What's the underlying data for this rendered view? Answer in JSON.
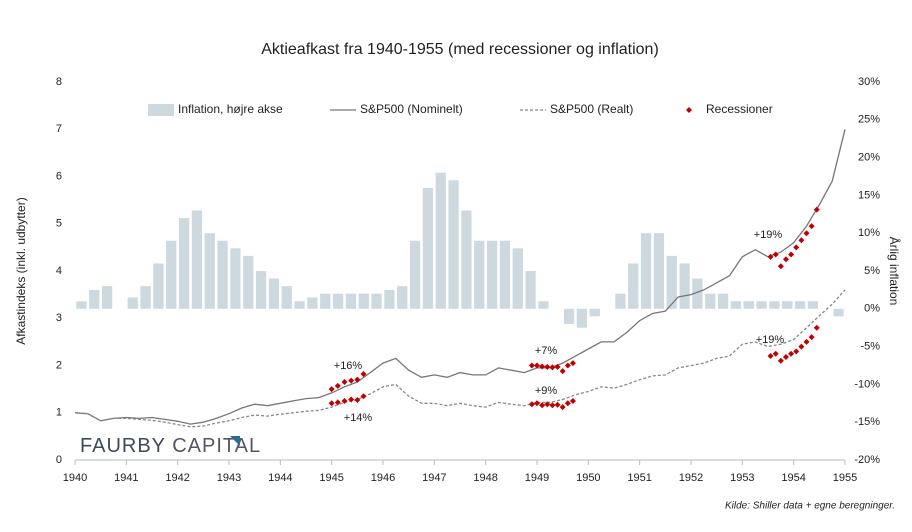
{
  "chart_data": {
    "type": "combo",
    "title": "Aktieafkast fra 1940-1955 (med recessioner og inflation)",
    "y_label": "Afkastindeks (inkl. udbytter)",
    "y2_label": "Årlig inflation",
    "source": "Kilde: Shiller data + egne beregninger.",
    "logo": [
      "FAURBY",
      "CAPITAL"
    ],
    "xlim": [
      1940,
      1955
    ],
    "xticks": [
      1940,
      1941,
      1942,
      1943,
      1944,
      1945,
      1946,
      1947,
      1948,
      1949,
      1950,
      1951,
      1952,
      1953,
      1954,
      1955
    ],
    "ylim": [
      0,
      8
    ],
    "yticks": [
      0,
      1,
      2,
      3,
      4,
      5,
      6,
      7,
      8
    ],
    "y2lim": [
      -20,
      30
    ],
    "y2ticks": [
      {
        "value": -20,
        "label": "-20%"
      },
      {
        "value": -15,
        "label": "-15%"
      },
      {
        "value": -10,
        "label": "-10%"
      },
      {
        "value": -5,
        "label": "-5%"
      },
      {
        "value": 0,
        "label": "0%"
      },
      {
        "value": 5,
        "label": "5%"
      },
      {
        "value": 10,
        "label": "10%"
      },
      {
        "value": 15,
        "label": "15%"
      },
      {
        "value": 20,
        "label": "20%"
      },
      {
        "value": 25,
        "label": "25%"
      },
      {
        "value": 30,
        "label": "30%"
      }
    ],
    "series": [
      {
        "name": "Inflation, højre akse",
        "kind": "bar",
        "axis": "y2",
        "color": "#cdd9de",
        "x": [
          1940,
          1940.25,
          1940.5,
          1940.75,
          1941,
          1941.25,
          1941.5,
          1941.75,
          1942,
          1942.25,
          1942.5,
          1942.75,
          1943,
          1943.25,
          1943.5,
          1943.75,
          1944,
          1944.25,
          1944.5,
          1944.75,
          1945,
          1945.25,
          1945.5,
          1945.75,
          1946,
          1946.25,
          1946.5,
          1946.75,
          1947,
          1947.25,
          1947.5,
          1947.75,
          1948,
          1948.25,
          1948.5,
          1948.75,
          1949,
          1949.25,
          1949.5,
          1949.75,
          1950,
          1950.25,
          1950.5,
          1950.75,
          1951,
          1951.25,
          1951.5,
          1951.75,
          1952,
          1952.25,
          1952.5,
          1952.75,
          1953,
          1953.25,
          1953.5,
          1953.75,
          1954,
          1954.25,
          1954.5,
          1954.75
        ],
        "values": [
          1,
          2.5,
          3,
          0,
          1.5,
          3,
          6,
          9,
          12,
          13,
          10,
          9,
          8,
          7,
          5,
          4,
          3,
          1,
          1.5,
          2,
          2,
          2,
          2,
          2,
          2.5,
          3,
          9,
          16,
          18,
          17,
          13,
          9,
          9,
          9,
          8,
          5,
          1,
          0,
          -2,
          -2.5,
          -1,
          0,
          2,
          6,
          10,
          10,
          7,
          6,
          4,
          2,
          2,
          1,
          1,
          1,
          1,
          1,
          1,
          1,
          0,
          -1
        ]
      },
      {
        "name": "S&P500 (Nominelt)",
        "kind": "line",
        "color": "#777777",
        "x": [
          1940,
          1940.25,
          1940.5,
          1940.75,
          1941,
          1941.25,
          1941.5,
          1941.75,
          1942,
          1942.25,
          1942.5,
          1942.75,
          1943,
          1943.25,
          1943.5,
          1943.75,
          1944,
          1944.25,
          1944.5,
          1944.75,
          1945,
          1945.25,
          1945.5,
          1945.75,
          1946,
          1946.25,
          1946.5,
          1946.75,
          1947,
          1947.25,
          1947.5,
          1947.75,
          1948,
          1948.25,
          1948.5,
          1948.75,
          1949,
          1949.25,
          1949.5,
          1949.75,
          1950,
          1950.25,
          1950.5,
          1950.75,
          1951,
          1951.25,
          1951.5,
          1951.75,
          1952,
          1952.25,
          1952.5,
          1952.75,
          1953,
          1953.25,
          1953.5,
          1953.75,
          1954,
          1954.25,
          1954.5,
          1954.75,
          1955
        ],
        "values": [
          1.0,
          0.98,
          0.83,
          0.88,
          0.9,
          0.88,
          0.9,
          0.86,
          0.82,
          0.76,
          0.8,
          0.88,
          0.98,
          1.1,
          1.18,
          1.15,
          1.2,
          1.25,
          1.3,
          1.32,
          1.42,
          1.55,
          1.65,
          1.85,
          2.05,
          2.15,
          1.9,
          1.75,
          1.8,
          1.75,
          1.85,
          1.8,
          1.8,
          1.95,
          1.9,
          1.85,
          1.95,
          1.95,
          2.05,
          2.2,
          2.35,
          2.5,
          2.5,
          2.7,
          2.95,
          3.1,
          3.15,
          3.45,
          3.5,
          3.6,
          3.75,
          3.9,
          4.3,
          4.45,
          4.3,
          4.4,
          4.6,
          4.95,
          5.4,
          5.9,
          7.0
        ]
      },
      {
        "name": "S&P500 (Realt)",
        "kind": "dashed",
        "color": "#888888",
        "x": [
          1940,
          1940.25,
          1940.5,
          1940.75,
          1941,
          1941.25,
          1941.5,
          1941.75,
          1942,
          1942.25,
          1942.5,
          1942.75,
          1943,
          1943.25,
          1943.5,
          1943.75,
          1944,
          1944.25,
          1944.5,
          1944.75,
          1945,
          1945.25,
          1945.5,
          1945.75,
          1946,
          1946.25,
          1946.5,
          1946.75,
          1947,
          1947.25,
          1947.5,
          1947.75,
          1948,
          1948.25,
          1948.5,
          1948.75,
          1949,
          1949.25,
          1949.5,
          1949.75,
          1950,
          1950.25,
          1950.5,
          1950.75,
          1951,
          1951.25,
          1951.5,
          1951.75,
          1952,
          1952.25,
          1952.5,
          1952.75,
          1953,
          1953.25,
          1953.5,
          1953.75,
          1954,
          1954.25,
          1954.5,
          1954.75,
          1955
        ],
        "values": [
          1.0,
          0.98,
          0.83,
          0.88,
          0.88,
          0.86,
          0.84,
          0.8,
          0.75,
          0.7,
          0.72,
          0.78,
          0.83,
          0.9,
          0.95,
          0.93,
          0.97,
          1.0,
          1.03,
          1.05,
          1.12,
          1.22,
          1.28,
          1.4,
          1.55,
          1.6,
          1.35,
          1.2,
          1.2,
          1.15,
          1.2,
          1.15,
          1.12,
          1.22,
          1.18,
          1.15,
          1.22,
          1.22,
          1.28,
          1.38,
          1.45,
          1.55,
          1.52,
          1.6,
          1.7,
          1.78,
          1.8,
          1.95,
          2.0,
          2.05,
          2.15,
          2.2,
          2.45,
          2.5,
          2.4,
          2.45,
          2.55,
          2.8,
          3.05,
          3.3,
          3.6
        ]
      },
      {
        "name": "Recessioner",
        "kind": "scatter",
        "color": "#c00000",
        "x": [
          1945.0,
          1945.12,
          1945.25,
          1945.38,
          1945.5,
          1945.62,
          1945.0,
          1945.12,
          1945.25,
          1945.38,
          1945.5,
          1945.62,
          1948.9,
          1949.0,
          1949.1,
          1949.2,
          1949.3,
          1949.4,
          1949.5,
          1949.6,
          1949.7,
          1948.9,
          1949.0,
          1949.1,
          1949.2,
          1949.3,
          1949.4,
          1949.5,
          1949.6,
          1949.7,
          1953.55,
          1953.65,
          1953.75,
          1953.85,
          1953.95,
          1954.05,
          1954.15,
          1954.25,
          1954.35,
          1954.45,
          1953.55,
          1953.65,
          1953.75,
          1953.85,
          1953.95,
          1954.05,
          1954.15,
          1954.25,
          1954.35,
          1954.45
        ],
        "values": [
          1.5,
          1.57,
          1.65,
          1.68,
          1.7,
          1.82,
          1.2,
          1.22,
          1.25,
          1.28,
          1.27,
          1.35,
          2.0,
          2.0,
          1.98,
          1.97,
          1.96,
          1.97,
          1.88,
          2.0,
          2.05,
          1.18,
          1.2,
          1.16,
          1.18,
          1.16,
          1.17,
          1.12,
          1.2,
          1.25,
          4.3,
          4.35,
          4.1,
          4.25,
          4.35,
          4.5,
          4.65,
          4.8,
          4.95,
          5.3,
          2.2,
          2.25,
          2.1,
          2.18,
          2.25,
          2.3,
          2.4,
          2.5,
          2.6,
          2.8
        ]
      }
    ],
    "annotations": [
      "+16%",
      "+14%",
      "+7%",
      "+9%",
      "+19%",
      "+19%"
    ],
    "annotation_color": "#c00000"
  }
}
